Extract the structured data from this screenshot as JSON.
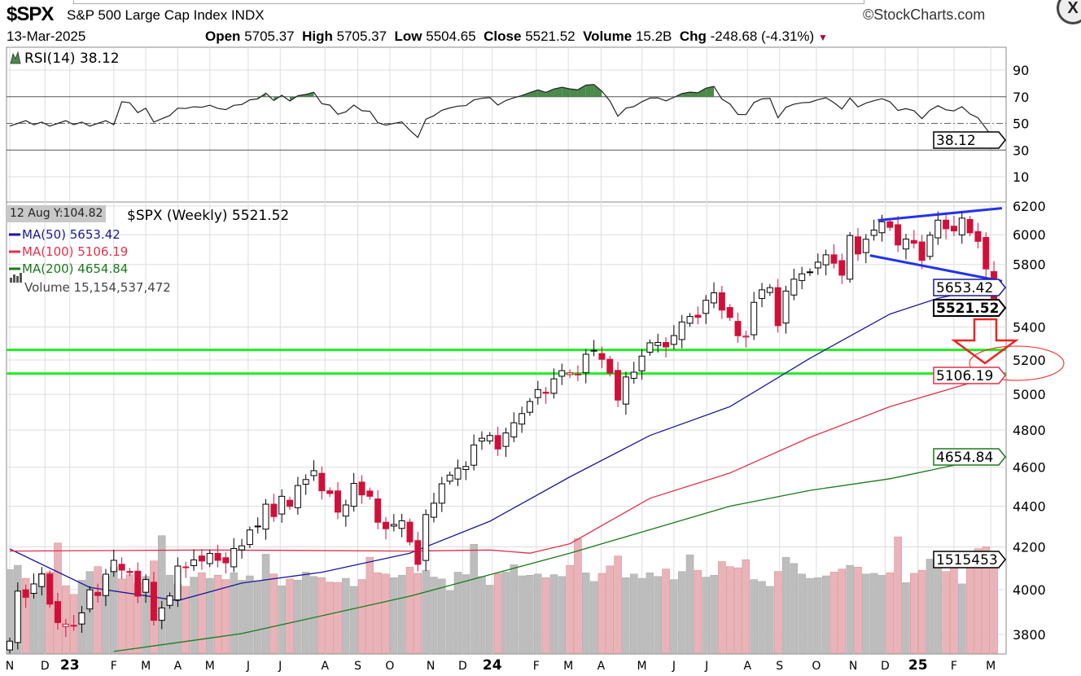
{
  "header": {
    "ticker": "$SPX",
    "name": "S&P 500 Large Cap Index  INDX",
    "brand": "©StockCharts.com",
    "date": "13-Mar-2025",
    "open_label": "Open",
    "open": "5705.37",
    "high_label": "High",
    "high": "5705.37",
    "low_label": "Low",
    "low": "5504.65",
    "close_label": "Close",
    "close": "5521.52",
    "volume_label": "Volume",
    "volume": "15.2B",
    "chg_label": "Chg",
    "chg": "-248.68 (-4.31%)",
    "chg_icon": "down-triangle-icon",
    "close_button": "X"
  },
  "tooltip": "12 Aug Y:104.82",
  "colors": {
    "up": "#000000",
    "down": "#d0103a",
    "ma50": "#1a1a9a",
    "ma100": "#e0304a",
    "ma200": "#1a7a1a",
    "vol_up": "#bdbdbd",
    "vol_down": "#e8b4ba",
    "support": "#22ee22",
    "trend": "#2233ee",
    "annot": "#ee2222",
    "rsi_fill": "#4a8a4a"
  },
  "chart_data": {
    "type": "candlestick",
    "title": "$SPX (Weekly) 5521.52",
    "interval": "weekly",
    "scale": "log",
    "ylim": [
      3700,
      6300
    ],
    "price_ticks": [
      6200,
      6000,
      5800,
      5400,
      5200,
      5000,
      4800,
      4600,
      4400,
      4200,
      4000,
      3800
    ],
    "x_labels": [
      {
        "label": "N",
        "week": 0
      },
      {
        "label": "D",
        "week": 4.4
      },
      {
        "label": "23",
        "week": 7.5
      },
      {
        "label": "F",
        "week": 13
      },
      {
        "label": "M",
        "week": 17
      },
      {
        "label": "A",
        "week": 21
      },
      {
        "label": "M",
        "week": 25
      },
      {
        "label": "J",
        "week": 29.8
      },
      {
        "label": "J",
        "week": 33.8
      },
      {
        "label": "A",
        "week": 39.4
      },
      {
        "label": "S",
        "week": 43.5
      },
      {
        "label": "O",
        "week": 47.5
      },
      {
        "label": "N",
        "week": 52.6
      },
      {
        "label": "D",
        "week": 56.6
      },
      {
        "label": "24",
        "week": 60.3
      },
      {
        "label": "F",
        "week": 65.8
      },
      {
        "label": "M",
        "week": 69.8
      },
      {
        "label": "A",
        "week": 73.9
      },
      {
        "label": "M",
        "week": 79
      },
      {
        "label": "J",
        "week": 83
      },
      {
        "label": "J",
        "week": 87.1
      },
      {
        "label": "A",
        "week": 92.2
      },
      {
        "label": "S",
        "week": 96.2
      },
      {
        "label": "O",
        "week": 100.8
      },
      {
        "label": "N",
        "week": 105.4
      },
      {
        "label": "D",
        "week": 109.4
      },
      {
        "label": "25",
        "week": 113.5
      },
      {
        "label": "F",
        "week": 118
      },
      {
        "label": "M",
        "week": 122.6
      }
    ],
    "closes": [
      3771,
      3993,
      3965,
      4026,
      4072,
      3934,
      3852,
      3845,
      3840,
      3895,
      3999,
      3973,
      4071,
      4136,
      4090,
      4079,
      3970,
      4046,
      3862,
      3917,
      3971,
      4109,
      4105,
      4138,
      4133,
      4169,
      4136,
      4124,
      4192,
      4205,
      4282,
      4299,
      4410,
      4348,
      4450,
      4399,
      4505,
      4536,
      4582,
      4478,
      4464,
      4370,
      4406,
      4516,
      4457,
      4450,
      4320,
      4288,
      4309,
      4327,
      4224,
      4117,
      4358,
      4415,
      4514,
      4559,
      4595,
      4604,
      4719,
      4755,
      4770,
      4697,
      4784,
      4840,
      4891,
      4959,
      5027,
      5006,
      5089,
      5137,
      5124,
      5117,
      5234,
      5254,
      5204,
      5123,
      4967,
      5100,
      5128,
      5223,
      5303,
      5305,
      5278,
      5347,
      5431,
      5465,
      5460,
      5567,
      5615,
      5505,
      5459,
      5346,
      5344,
      5554,
      5634,
      5648,
      5408,
      5626,
      5703,
      5738,
      5751,
      5815,
      5864,
      5808,
      5729,
      5995,
      5870,
      5969,
      6032,
      6090,
      6051,
      5930,
      5970,
      5942,
      5827,
      5997,
      6101,
      6041,
      6026,
      6115,
      6013,
      5955,
      5770,
      5521.52
    ],
    "volume_billions": [
      13.5,
      14.2,
      12.1,
      9.8,
      12.9,
      13.1,
      17.8,
      10.9,
      9.5,
      11.8,
      13.2,
      14.0,
      12.5,
      13.9,
      12.0,
      12.7,
      11.3,
      12.4,
      14.9,
      19.0,
      12.6,
      11.2,
      10.8,
      12.3,
      13.0,
      12.1,
      12.6,
      11.9,
      13.0,
      11.8,
      12.5,
      11.7,
      16.0,
      12.8,
      10.9,
      12.0,
      11.8,
      13.1,
      12.4,
      12.2,
      11.5,
      11.4,
      12.1,
      10.8,
      11.9,
      15.5,
      13.0,
      12.8,
      12.2,
      12.6,
      13.9,
      12.9,
      13.4,
      12.3,
      12.0,
      10.1,
      13.1,
      12.7,
      17.6,
      12.4,
      11.0,
      12.9,
      13.1,
      14.3,
      12.5,
      12.6,
      12.8,
      12.2,
      12.7,
      12.4,
      14.2,
      18.5,
      13.0,
      11.6,
      12.9,
      14.1,
      15.7,
      12.2,
      12.8,
      12.1,
      13.0,
      12.4,
      13.6,
      11.9,
      13.2,
      15.9,
      13.4,
      12.3,
      12.6,
      14.8,
      14.0,
      13.8,
      15.1,
      11.9,
      11.6,
      10.8,
      13.2,
      15.5,
      14.5,
      12.8,
      12.1,
      12.2,
      12.5,
      13.1,
      13.6,
      14.2,
      13.9,
      12.8,
      12.9,
      12.6,
      13.0,
      18.8,
      11.4,
      12.9,
      13.4,
      15.2,
      14.3,
      13.2,
      14.0,
      11.2,
      14.4,
      16.9,
      17.2,
      15.15
    ],
    "moving_averages": [
      {
        "name": "MA(50)",
        "label": "MA(50) 5653.42",
        "last": "5653.42",
        "color": "ma50",
        "points": [
          [
            0,
            4190
          ],
          [
            10,
            4010
          ],
          [
            21,
            3950
          ],
          [
            29,
            4030
          ],
          [
            39,
            4080
          ],
          [
            50,
            4170
          ],
          [
            60,
            4325
          ],
          [
            70,
            4550
          ],
          [
            80,
            4770
          ],
          [
            90,
            4930
          ],
          [
            100,
            5210
          ],
          [
            110,
            5480
          ],
          [
            116,
            5580
          ],
          [
            123,
            5653.42
          ]
        ]
      },
      {
        "name": "MA(100)",
        "label": "MA(100) 5106.19",
        "last": "5106.19",
        "color": "ma100",
        "points": [
          [
            0,
            4180
          ],
          [
            25,
            4185
          ],
          [
            50,
            4180
          ],
          [
            60,
            4185
          ],
          [
            65,
            4170
          ],
          [
            70,
            4215
          ],
          [
            80,
            4440
          ],
          [
            90,
            4570
          ],
          [
            100,
            4760
          ],
          [
            110,
            4930
          ],
          [
            123,
            5106.19
          ]
        ]
      },
      {
        "name": "MA(200)",
        "label": "MA(200) 4654.84",
        "last": "4654.84",
        "color": "ma200",
        "points": [
          [
            13,
            3727
          ],
          [
            29,
            3804
          ],
          [
            50,
            3970
          ],
          [
            70,
            4170
          ],
          [
            90,
            4400
          ],
          [
            100,
            4480
          ],
          [
            110,
            4540
          ],
          [
            123,
            4654.84
          ]
        ]
      }
    ],
    "volume_label": "Volume 15,154,537,472",
    "volume_tag": "1515453",
    "last_close_tag": "5521.52",
    "annotations": {
      "support_levels": [
        5260,
        5120
      ],
      "trendline_upper": [
        [
          108.5,
          6100
        ],
        [
          124,
          6185
        ]
      ],
      "trendline_lower": [
        [
          107.5,
          5860
        ],
        [
          124,
          5690
        ]
      ]
    },
    "rsi": {
      "label": "RSI(14) 38.12",
      "last": "38.12",
      "period": 14,
      "ticks": [
        90,
        70,
        50,
        30,
        10
      ],
      "ylim": [
        0,
        100
      ],
      "overbought": 70,
      "oversold": 30
    }
  }
}
